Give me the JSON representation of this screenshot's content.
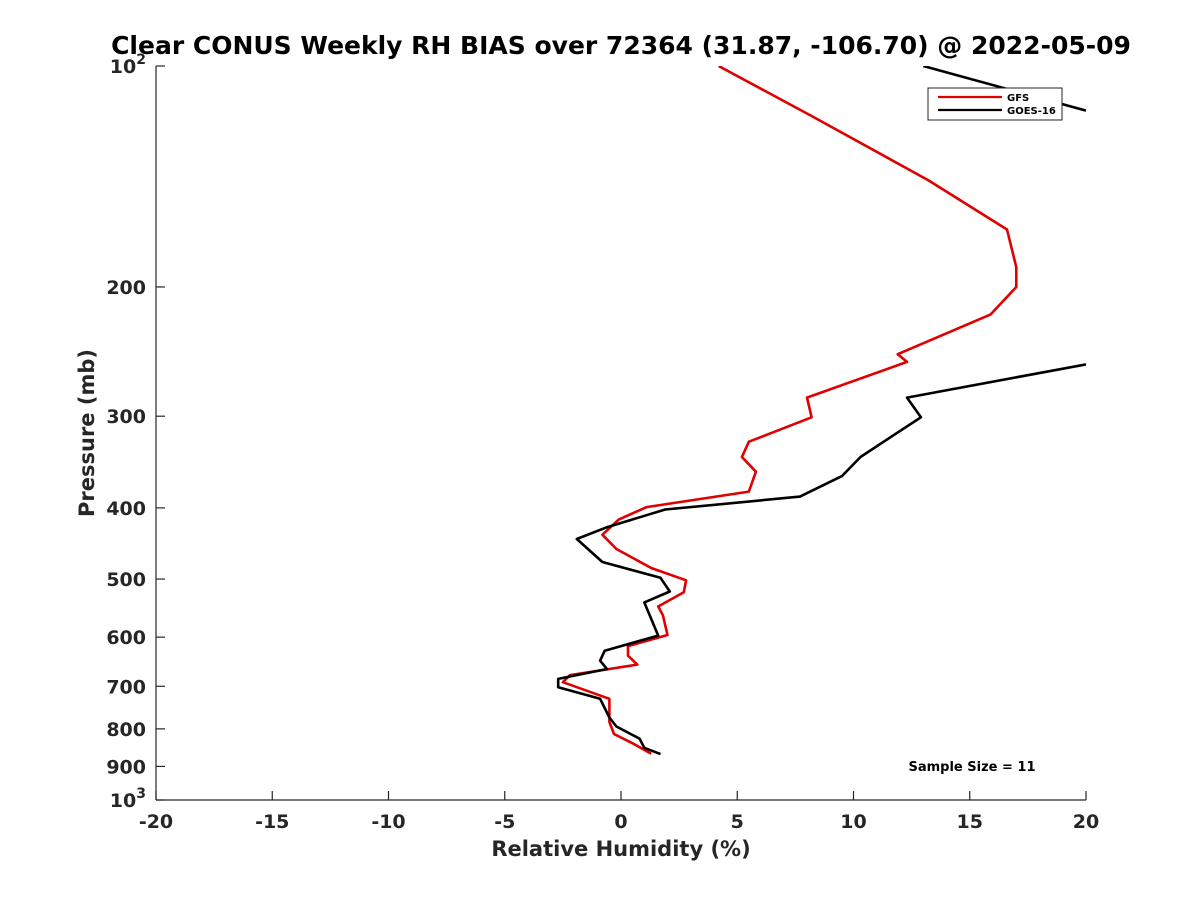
{
  "chart_data": {
    "type": "line",
    "title": "Clear CONUS Weekly RH BIAS over 72364 (31.87, -106.70) @ 2022-05-09",
    "xlabel": "Relative Humidity (%)",
    "ylabel": "Pressure (mb)",
    "xlim": [
      -20,
      20
    ],
    "ylim": [
      100,
      1000
    ],
    "y_scale": "log",
    "y_reversed": true,
    "grid": false,
    "legend_position": "top-right",
    "x_ticks": [
      -20,
      -15,
      -10,
      -5,
      0,
      5,
      10,
      15,
      20
    ],
    "x_tick_labels": [
      "-20",
      "-15",
      "-10",
      "-5",
      "0",
      "5",
      "10",
      "15",
      "20"
    ],
    "y_ticks": [
      100,
      200,
      300,
      400,
      500,
      600,
      700,
      800,
      900,
      1000
    ],
    "y_tick_labels": [
      "10^2",
      "200",
      "300",
      "400",
      "500",
      "600",
      "700",
      "800",
      "900",
      "10^3"
    ],
    "annotation": "Sample Size = 11",
    "series": [
      {
        "name": "GFS",
        "color": "#e00000",
        "points": [
          [
            4.2,
            100
          ],
          [
            8.2,
            117
          ],
          [
            13.2,
            143
          ],
          [
            16.6,
            167
          ],
          [
            17.0,
            188
          ],
          [
            17.0,
            200
          ],
          [
            15.9,
            218
          ],
          [
            11.9,
            247
          ],
          [
            12.3,
            253
          ],
          [
            8.0,
            283
          ],
          [
            8.2,
            301
          ],
          [
            5.5,
            325
          ],
          [
            5.2,
            341
          ],
          [
            5.8,
            357
          ],
          [
            5.5,
            380
          ],
          [
            1.1,
            399
          ],
          [
            -0.1,
            415
          ],
          [
            -0.8,
            435
          ],
          [
            -0.2,
            455
          ],
          [
            1.3,
            483
          ],
          [
            2.8,
            502
          ],
          [
            2.7,
            521
          ],
          [
            1.6,
            545
          ],
          [
            1.8,
            560
          ],
          [
            2.0,
            596
          ],
          [
            0.3,
            617
          ],
          [
            0.3,
            636
          ],
          [
            0.7,
            654
          ],
          [
            -2.2,
            676
          ],
          [
            -2.5,
            691
          ],
          [
            -0.5,
            728
          ],
          [
            -0.5,
            783
          ],
          [
            -0.3,
            813
          ],
          [
            0.5,
            837
          ],
          [
            1.3,
            865
          ]
        ]
      },
      {
        "name": "GOES-16",
        "color": "#000000",
        "points": [
          [
            20.0,
            255
          ],
          [
            12.3,
            283
          ],
          [
            12.9,
            301
          ],
          [
            11.3,
            325
          ],
          [
            10.3,
            341
          ],
          [
            9.5,
            362
          ],
          [
            7.7,
            386
          ],
          [
            1.9,
            402
          ],
          [
            -0.6,
            425
          ],
          [
            -1.9,
            441
          ],
          [
            -0.8,
            474
          ],
          [
            1.7,
            498
          ],
          [
            2.1,
            520
          ],
          [
            1.0,
            538
          ],
          [
            1.6,
            597
          ],
          [
            -0.7,
            626
          ],
          [
            -0.9,
            646
          ],
          [
            -0.6,
            663
          ],
          [
            -2.7,
            684
          ],
          [
            -2.7,
            702
          ],
          [
            -0.9,
            728
          ],
          [
            -0.5,
            772
          ],
          [
            -0.2,
            794
          ],
          [
            0.8,
            825
          ],
          [
            1.0,
            849
          ],
          [
            1.7,
            866
          ]
        ],
        "upper_segment": [
          [
            13.0,
            100
          ],
          [
            20.0,
            115
          ]
        ]
      }
    ]
  }
}
